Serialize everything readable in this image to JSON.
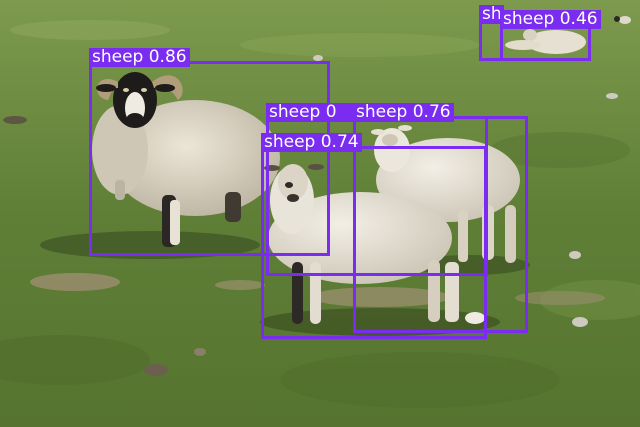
{
  "image": {
    "description_colors": {
      "grass": "#5b7a35",
      "grass_light": "#7f9a4e",
      "dirt": "#9a8c6c",
      "wool": "#d8d1c2",
      "sheep_face_dark": "#1d1b1a",
      "box": "#7b2ff0"
    }
  },
  "detections": [
    {
      "label": "sheep",
      "score": "0.86",
      "text": "sheep 0.86"
    },
    {
      "label": "sheep",
      "score": "0.76",
      "text": "sheep 0.76"
    },
    {
      "label": "sheep",
      "score": "0.74",
      "text": "sheep 0.74"
    },
    {
      "label": "sheep",
      "score": "",
      "text": "sheep 0"
    },
    {
      "label": "sheep",
      "score": "0.46",
      "text": "sheep 0.46"
    },
    {
      "label": "sheep",
      "score": "",
      "text": "sh"
    }
  ]
}
